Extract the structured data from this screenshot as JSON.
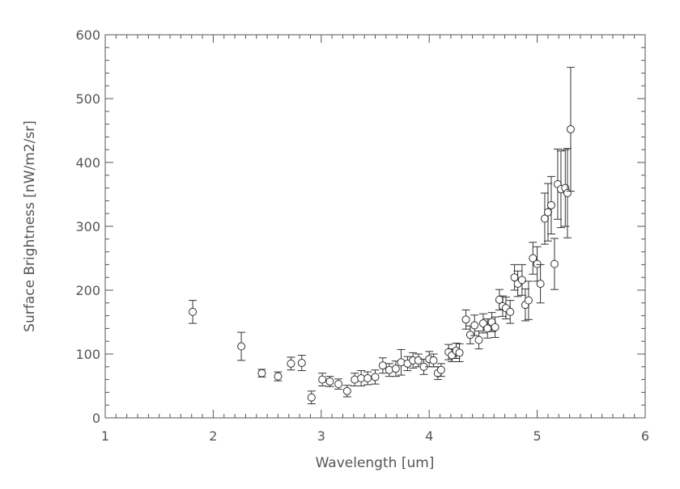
{
  "chart_data": {
    "type": "scatter",
    "title": "",
    "xlabel": "Wavelength [um]",
    "ylabel": "Surface Brightness [nW/m2/sr]",
    "xlim": [
      1,
      6
    ],
    "ylim": [
      0,
      600
    ],
    "xticks": [
      "1",
      "2",
      "3",
      "4",
      "5",
      "6"
    ],
    "yticks": [
      "0",
      "100",
      "200",
      "300",
      "400",
      "500",
      "600"
    ],
    "grid": false,
    "marker": "open-circle",
    "error_bars": true,
    "colors": {
      "axis": "#555555",
      "marker": "#333333"
    },
    "points": [
      {
        "x": 1.81,
        "y": 166,
        "err": 18
      },
      {
        "x": 2.26,
        "y": 112,
        "err": 22
      },
      {
        "x": 2.45,
        "y": 70,
        "err": 6
      },
      {
        "x": 2.6,
        "y": 65,
        "err": 7
      },
      {
        "x": 2.72,
        "y": 85,
        "err": 10
      },
      {
        "x": 2.82,
        "y": 86,
        "err": 12
      },
      {
        "x": 2.91,
        "y": 32,
        "err": 10
      },
      {
        "x": 3.01,
        "y": 60,
        "err": 10
      },
      {
        "x": 3.08,
        "y": 57,
        "err": 8
      },
      {
        "x": 3.16,
        "y": 53,
        "err": 8
      },
      {
        "x": 3.24,
        "y": 42,
        "err": 9
      },
      {
        "x": 3.31,
        "y": 60,
        "err": 10
      },
      {
        "x": 3.37,
        "y": 62,
        "err": 12
      },
      {
        "x": 3.43,
        "y": 62,
        "err": 10
      },
      {
        "x": 3.5,
        "y": 64,
        "err": 11
      },
      {
        "x": 3.57,
        "y": 82,
        "err": 12
      },
      {
        "x": 3.63,
        "y": 75,
        "err": 10
      },
      {
        "x": 3.69,
        "y": 77,
        "err": 12
      },
      {
        "x": 3.74,
        "y": 87,
        "err": 20
      },
      {
        "x": 3.8,
        "y": 85,
        "err": 11
      },
      {
        "x": 3.85,
        "y": 90,
        "err": 12
      },
      {
        "x": 3.9,
        "y": 90,
        "err": 10
      },
      {
        "x": 3.95,
        "y": 80,
        "err": 12
      },
      {
        "x": 4.0,
        "y": 92,
        "err": 12
      },
      {
        "x": 4.04,
        "y": 90,
        "err": 10
      },
      {
        "x": 4.08,
        "y": 70,
        "err": 10
      },
      {
        "x": 4.11,
        "y": 75,
        "err": 10
      },
      {
        "x": 4.18,
        "y": 103,
        "err": 12
      },
      {
        "x": 4.21,
        "y": 98,
        "err": 10
      },
      {
        "x": 4.25,
        "y": 105,
        "err": 12
      },
      {
        "x": 4.28,
        "y": 102,
        "err": 14
      },
      {
        "x": 4.34,
        "y": 154,
        "err": 15
      },
      {
        "x": 4.38,
        "y": 130,
        "err": 14
      },
      {
        "x": 4.42,
        "y": 145,
        "err": 16
      },
      {
        "x": 4.46,
        "y": 122,
        "err": 14
      },
      {
        "x": 4.5,
        "y": 148,
        "err": 15
      },
      {
        "x": 4.54,
        "y": 140,
        "err": 15
      },
      {
        "x": 4.58,
        "y": 150,
        "err": 15
      },
      {
        "x": 4.61,
        "y": 142,
        "err": 16
      },
      {
        "x": 4.65,
        "y": 185,
        "err": 16
      },
      {
        "x": 4.68,
        "y": 175,
        "err": 16
      },
      {
        "x": 4.71,
        "y": 172,
        "err": 17
      },
      {
        "x": 4.75,
        "y": 166,
        "err": 18
      },
      {
        "x": 4.79,
        "y": 220,
        "err": 20
      },
      {
        "x": 4.82,
        "y": 210,
        "err": 20
      },
      {
        "x": 4.86,
        "y": 216,
        "err": 24
      },
      {
        "x": 4.89,
        "y": 177,
        "err": 25
      },
      {
        "x": 4.92,
        "y": 184,
        "err": 30
      },
      {
        "x": 4.96,
        "y": 250,
        "err": 25
      },
      {
        "x": 5.0,
        "y": 241,
        "err": 27
      },
      {
        "x": 5.03,
        "y": 210,
        "err": 30
      },
      {
        "x": 5.07,
        "y": 312,
        "err": 40
      },
      {
        "x": 5.1,
        "y": 322,
        "err": 45
      },
      {
        "x": 5.13,
        "y": 333,
        "err": 45
      },
      {
        "x": 5.16,
        "y": 241,
        "err": 40
      },
      {
        "x": 5.19,
        "y": 366,
        "err": 55
      },
      {
        "x": 5.22,
        "y": 358,
        "err": 60
      },
      {
        "x": 5.26,
        "y": 360,
        "err": 60
      },
      {
        "x": 5.28,
        "y": 352,
        "err": 70
      },
      {
        "x": 5.31,
        "y": 452,
        "err": 97
      }
    ]
  }
}
